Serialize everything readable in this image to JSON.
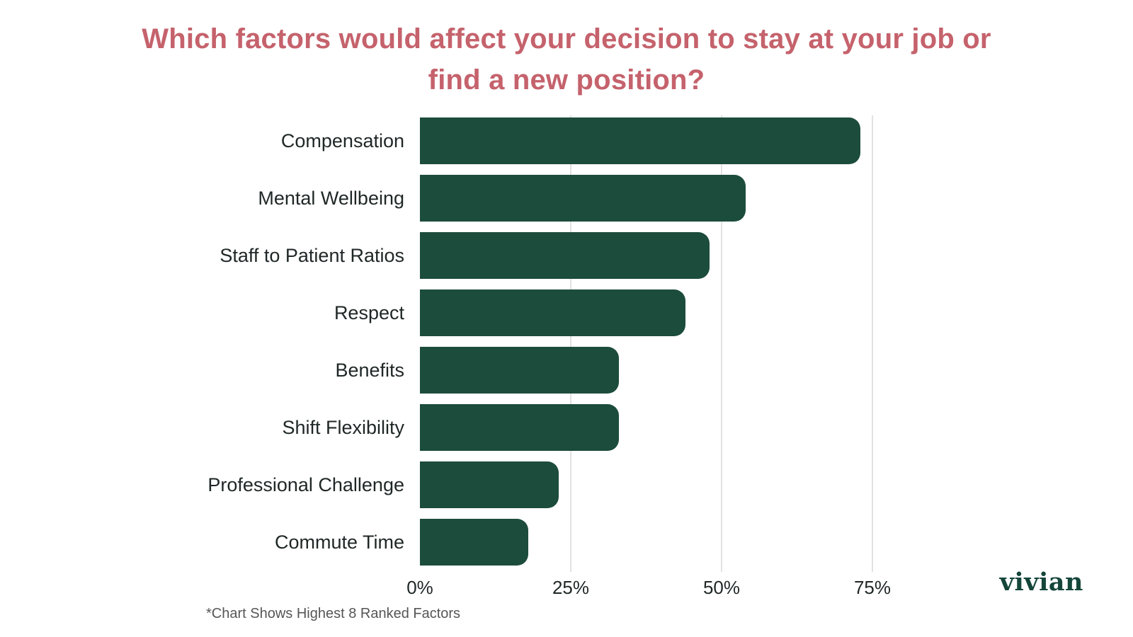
{
  "chart_data": {
    "type": "bar",
    "orientation": "horizontal",
    "title": "Which factors would affect your decision to stay at your job or find a new position?",
    "categories": [
      "Compensation",
      "Mental Wellbeing",
      "Staff to Patient Ratios",
      "Respect",
      "Benefits",
      "Shift Flexibility",
      "Professional Challenge",
      "Commute Time"
    ],
    "values": [
      73,
      54,
      48,
      44,
      33,
      33,
      23,
      18
    ],
    "unit": "%",
    "xlim": [
      0,
      100
    ],
    "x_ticks": [
      {
        "label": "0%",
        "value": 0
      },
      {
        "label": "25%",
        "value": 25
      },
      {
        "label": "50%",
        "value": 50
      },
      {
        "label": "75%",
        "value": 75
      }
    ],
    "grid": true,
    "legend": false,
    "bar_color": "#1c4c3b",
    "gridline_color": "#e2e2e2"
  },
  "footnote": "*Chart Shows Highest 8 Ranked Factors",
  "logo_text": "vivian",
  "colors": {
    "title": "#c5626c",
    "bar": "#1c4c3b",
    "label": "#1f2726",
    "footnote": "#565656",
    "logo": "#15463a",
    "background": "#ffffff"
  }
}
